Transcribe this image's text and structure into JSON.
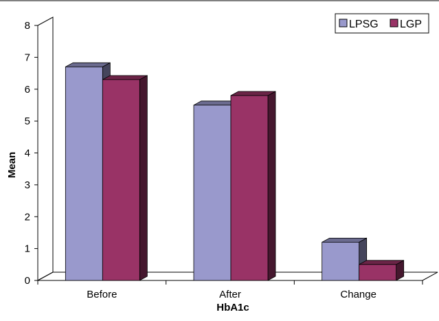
{
  "chart_data": {
    "type": "bar",
    "title": "",
    "xlabel": "HbA1c",
    "ylabel": "Mean",
    "categories": [
      "Before",
      "After",
      "Change"
    ],
    "series": [
      {
        "name": "LPSG",
        "values": [
          6.7,
          5.5,
          1.2
        ],
        "color": "#9999cc"
      },
      {
        "name": "LGP",
        "values": [
          6.3,
          5.8,
          0.5
        ],
        "color": "#993366"
      }
    ],
    "ylim": [
      0,
      8
    ],
    "yticks": [
      0,
      1,
      2,
      3,
      4,
      5,
      6,
      7,
      8
    ],
    "grid": false,
    "legend_position": "top-right",
    "style": "3d-bars"
  }
}
